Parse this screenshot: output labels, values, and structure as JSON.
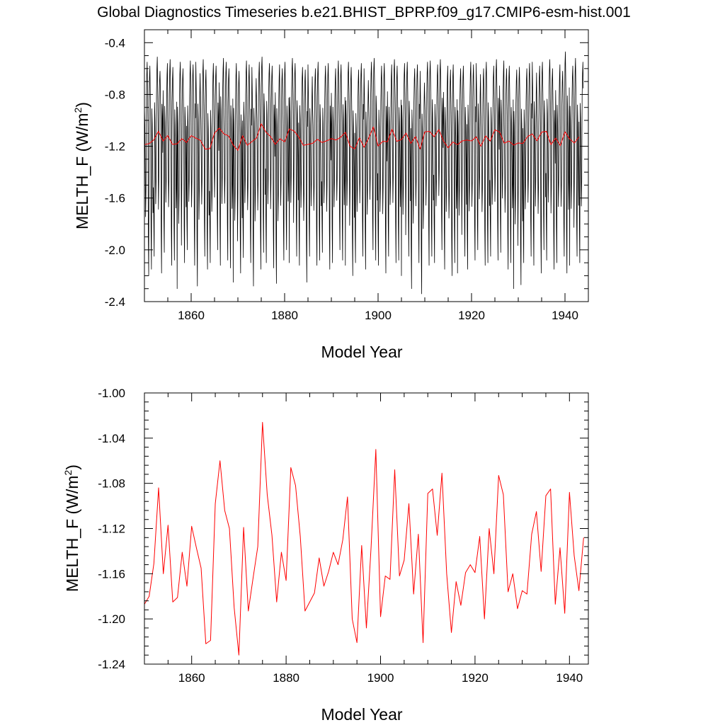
{
  "title": "Global Diagnostics Timeseries b.e21.BHIST_BPRP.f09_g17.CMIP6-esm-hist.001",
  "chart_data": [
    {
      "type": "line",
      "xlabel": "Model Year",
      "ylabel": "MELTH_F (W/m²)",
      "ylabel_base": "MELTH_F (W/m",
      "ylabel_sup": "2",
      "ylabel_close": ")",
      "xlim": [
        1850,
        1945
      ],
      "ylim": [
        -2.4,
        -0.3
      ],
      "xticks": [
        1860,
        1880,
        1900,
        1920,
        1940
      ],
      "yticks": [
        -0.4,
        -0.8,
        -1.2,
        -1.6,
        -2.0,
        -2.4
      ],
      "ytick_labels": [
        "-0.4",
        "-0.8",
        "-1.2",
        "-1.6",
        "-2.0",
        "-2.4"
      ],
      "series": [
        {
          "color": "#000000",
          "monthly": true,
          "annual_means": [
            -1.187,
            -1.18,
            -1.151,
            -1.084,
            -1.16,
            -1.117,
            -1.185,
            -1.181,
            -1.141,
            -1.171,
            -1.118,
            -1.137,
            -1.155,
            -1.222,
            -1.219,
            -1.098,
            -1.06,
            -1.104,
            -1.12,
            -1.19,
            -1.232,
            -1.119,
            -1.193,
            -1.164,
            -1.136,
            -1.026,
            -1.09,
            -1.126,
            -1.185,
            -1.141,
            -1.166,
            -1.066,
            -1.082,
            -1.127,
            -1.193,
            -1.185,
            -1.177,
            -1.146,
            -1.171,
            -1.158,
            -1.141,
            -1.152,
            -1.13,
            -1.092,
            -1.2,
            -1.221,
            -1.135,
            -1.208,
            -1.136,
            -1.05,
            -1.198,
            -1.162,
            -1.165,
            -1.068,
            -1.162,
            -1.148,
            -1.098,
            -1.178,
            -1.125,
            -1.221,
            -1.089,
            -1.085,
            -1.126,
            -1.071,
            -1.16,
            -1.212,
            -1.167,
            -1.188,
            -1.159,
            -1.152,
            -1.159,
            -1.127,
            -1.2,
            -1.12,
            -1.16,
            -1.073,
            -1.09,
            -1.176,
            -1.16,
            -1.191,
            -1.175,
            -1.178,
            -1.125,
            -1.105,
            -1.158,
            -1.091,
            -1.085,
            -1.187,
            -1.137,
            -1.195,
            -1.088,
            -1.144,
            -1.175,
            -1.128
          ],
          "monthly_max": [
            -0.55,
            -0.58,
            -0.51,
            -0.62,
            -0.56,
            -0.53,
            -0.59,
            -0.55,
            -0.6,
            -0.54,
            -0.57,
            -0.55,
            -0.53,
            -0.61,
            -0.56,
            -0.58,
            -0.52,
            -0.55,
            -0.6,
            -0.56,
            -0.62,
            -0.54,
            -0.57,
            -0.59,
            -0.55,
            -0.51,
            -0.56,
            -0.58,
            -0.57,
            -0.6,
            -0.55,
            -0.52,
            -0.56,
            -0.59,
            -0.61,
            -0.57,
            -0.6,
            -0.55,
            -0.58,
            -0.56,
            -0.6,
            -0.54,
            -0.57,
            -0.55,
            -0.59,
            -0.61,
            -0.56,
            -0.6,
            -0.55,
            -0.52,
            -0.58,
            -0.56,
            -0.57,
            -0.53,
            -0.58,
            -0.56,
            -0.55,
            -0.6,
            -0.57,
            -0.62,
            -0.55,
            -0.54,
            -0.57,
            -0.53,
            -0.58,
            -0.61,
            -0.57,
            -0.6,
            -0.58,
            -0.55,
            -0.57,
            -0.56,
            -0.6,
            -0.55,
            -0.58,
            -0.53,
            -0.54,
            -0.6,
            -0.58,
            -0.61,
            -0.59,
            -0.6,
            -0.56,
            -0.55,
            -0.58,
            -0.55,
            -0.53,
            -0.6,
            -0.57,
            -0.62,
            -0.47,
            -0.58,
            -0.52,
            -0.55
          ],
          "monthly_min": [
            -2.2,
            -2.15,
            -2.05,
            -2.18,
            -2.02,
            -2.12,
            -2.08,
            -2.3,
            -2.1,
            -2.0,
            -2.12,
            -2.28,
            -2.05,
            -2.15,
            -2.1,
            -2.0,
            -2.12,
            -2.08,
            -2.14,
            -2.25,
            -2.18,
            -2.06,
            -2.1,
            -2.28,
            -2.15,
            -2.02,
            -2.1,
            -2.14,
            -2.26,
            -2.08,
            -2.0,
            -2.1,
            -2.05,
            -2.12,
            -2.25,
            -2.05,
            -2.12,
            -2.08,
            -2.02,
            -2.15,
            -2.1,
            -2.0,
            -2.08,
            -2.12,
            -2.2,
            -2.1,
            -2.05,
            -2.15,
            -2.0,
            -2.08,
            -2.12,
            -2.18,
            -2.05,
            -2.1,
            -2.08,
            -2.2,
            -2.05,
            -2.3,
            -2.1,
            -2.34,
            -2.12,
            -2.05,
            -2.1,
            -2.0,
            -2.15,
            -2.2,
            -2.1,
            -2.18,
            -2.05,
            -2.15,
            -2.08,
            -2.0,
            -2.12,
            -2.1,
            -2.05,
            -2.08,
            -2.02,
            -2.15,
            -2.1,
            -2.3,
            -2.27,
            -2.1,
            -2.05,
            -2.12,
            -2.18,
            -2.0,
            -2.08,
            -2.15,
            -2.1,
            -2.05,
            -2.18,
            -2.12,
            -2.05,
            -2.1
          ]
        },
        {
          "color": "#ff0000",
          "annual": true,
          "x_start": 1850,
          "values": [
            -1.187,
            -1.18,
            -1.151,
            -1.084,
            -1.16,
            -1.117,
            -1.185,
            -1.181,
            -1.141,
            -1.171,
            -1.118,
            -1.137,
            -1.155,
            -1.222,
            -1.219,
            -1.098,
            -1.06,
            -1.104,
            -1.12,
            -1.19,
            -1.232,
            -1.119,
            -1.193,
            -1.164,
            -1.136,
            -1.026,
            -1.09,
            -1.126,
            -1.185,
            -1.141,
            -1.166,
            -1.066,
            -1.082,
            -1.127,
            -1.193,
            -1.185,
            -1.177,
            -1.146,
            -1.171,
            -1.158,
            -1.141,
            -1.152,
            -1.13,
            -1.092,
            -1.2,
            -1.221,
            -1.135,
            -1.208,
            -1.136,
            -1.05,
            -1.198,
            -1.162,
            -1.165,
            -1.068,
            -1.162,
            -1.148,
            -1.098,
            -1.178,
            -1.125,
            -1.221,
            -1.089,
            -1.085,
            -1.126,
            -1.071,
            -1.16,
            -1.212,
            -1.167,
            -1.188,
            -1.159,
            -1.152,
            -1.159,
            -1.127,
            -1.2,
            -1.12,
            -1.16,
            -1.073,
            -1.09,
            -1.176,
            -1.16,
            -1.191,
            -1.175,
            -1.178,
            -1.125,
            -1.105,
            -1.158,
            -1.091,
            -1.085,
            -1.187,
            -1.137,
            -1.195,
            -1.088,
            -1.144,
            -1.175,
            -1.128
          ]
        }
      ]
    },
    {
      "type": "line",
      "xlabel": "Model Year",
      "ylabel": "MELTH_F (W/m²)",
      "ylabel_base": "MELTH_F (W/m",
      "ylabel_sup": "2",
      "ylabel_close": ")",
      "xlim": [
        1850,
        1944
      ],
      "ylim": [
        -1.24,
        -1.0
      ],
      "xticks": [
        1860,
        1880,
        1900,
        1920,
        1940
      ],
      "yticks": [
        -1.0,
        -1.04,
        -1.08,
        -1.12,
        -1.16,
        -1.2,
        -1.24
      ],
      "ytick_labels": [
        "-1.00",
        "-1.04",
        "-1.08",
        "-1.12",
        "-1.16",
        "-1.20",
        "-1.24"
      ],
      "series": [
        {
          "color": "#ff0000",
          "x_start": 1850,
          "values": [
            -1.187,
            -1.18,
            -1.151,
            -1.084,
            -1.16,
            -1.117,
            -1.185,
            -1.181,
            -1.141,
            -1.171,
            -1.118,
            -1.137,
            -1.155,
            -1.222,
            -1.219,
            -1.098,
            -1.06,
            -1.104,
            -1.12,
            -1.19,
            -1.232,
            -1.119,
            -1.193,
            -1.164,
            -1.136,
            -1.026,
            -1.09,
            -1.126,
            -1.185,
            -1.141,
            -1.166,
            -1.066,
            -1.082,
            -1.127,
            -1.193,
            -1.185,
            -1.177,
            -1.146,
            -1.171,
            -1.158,
            -1.141,
            -1.152,
            -1.13,
            -1.092,
            -1.2,
            -1.221,
            -1.135,
            -1.208,
            -1.136,
            -1.05,
            -1.198,
            -1.162,
            -1.165,
            -1.068,
            -1.162,
            -1.148,
            -1.098,
            -1.178,
            -1.125,
            -1.221,
            -1.089,
            -1.085,
            -1.126,
            -1.071,
            -1.16,
            -1.212,
            -1.167,
            -1.188,
            -1.159,
            -1.152,
            -1.159,
            -1.127,
            -1.2,
            -1.12,
            -1.16,
            -1.073,
            -1.09,
            -1.176,
            -1.16,
            -1.191,
            -1.175,
            -1.178,
            -1.125,
            -1.105,
            -1.158,
            -1.091,
            -1.085,
            -1.187,
            -1.137,
            -1.195,
            -1.088,
            -1.144,
            -1.175,
            -1.128
          ]
        }
      ]
    }
  ]
}
